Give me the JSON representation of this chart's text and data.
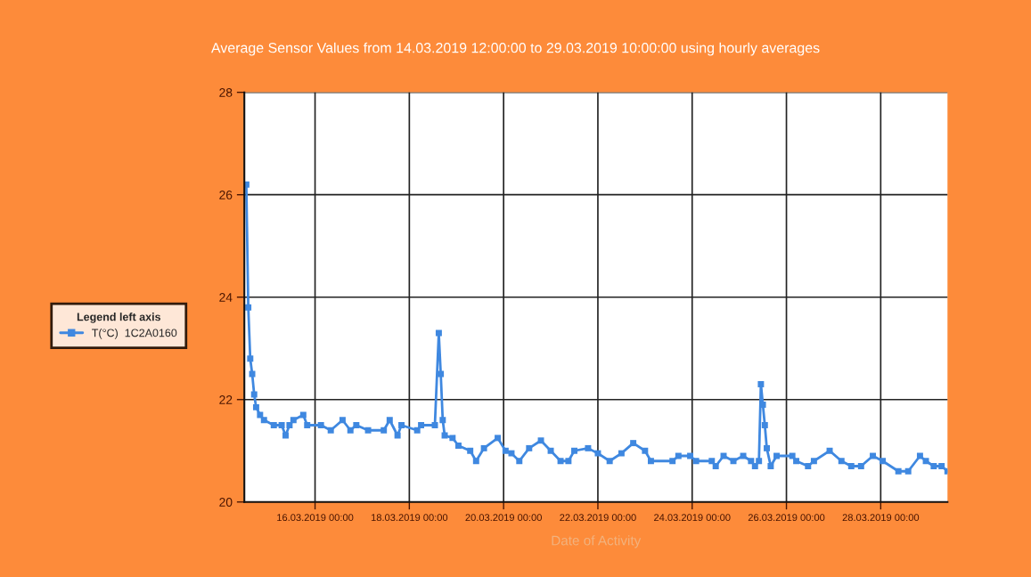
{
  "chart_data": {
    "type": "line",
    "title": "Average Sensor Values from 14.03.2019 12:00:00 to 29.03.2019 10:00:00 using hourly averages",
    "xlabel": "Date of Activity",
    "legend_title": "Legend left axis",
    "legend": "left",
    "grid": true,
    "marker": "square",
    "line_style": "solid",
    "xlim": [
      "2019-03-14T12:00",
      "2019-03-29T10:00"
    ],
    "xticks": [
      {
        "value": "2019-03-16T00:00",
        "label": "16.03.2019 00:00"
      },
      {
        "value": "2019-03-18T00:00",
        "label": "18.03.2019 00:00"
      },
      {
        "value": "2019-03-20T00:00",
        "label": "20.03.2019 00:00"
      },
      {
        "value": "2019-03-22T00:00",
        "label": "22.03.2019 00:00"
      },
      {
        "value": "2019-03-24T00:00",
        "label": "24.03.2019 00:00"
      },
      {
        "value": "2019-03-26T00:00",
        "label": "26.03.2019 00:00"
      },
      {
        "value": "2019-03-28T00:00",
        "label": "28.03.2019 00:00"
      }
    ],
    "ylim": [
      20,
      28
    ],
    "yticks": [
      20,
      22,
      24,
      26,
      28
    ],
    "series": [
      {
        "name": "T(°C)  1C2A0160",
        "color": "#3f88e0",
        "x": [
          "2019-03-14T13:00",
          "2019-03-14T14:00",
          "2019-03-14T15:00",
          "2019-03-14T16:00",
          "2019-03-14T17:00",
          "2019-03-14T18:00",
          "2019-03-14T20:00",
          "2019-03-14T22:00",
          "2019-03-15T03:00",
          "2019-03-15T07:00",
          "2019-03-15T09:00",
          "2019-03-15T11:00",
          "2019-03-15T13:00",
          "2019-03-15T18:00",
          "2019-03-15T20:00",
          "2019-03-16T03:00",
          "2019-03-16T08:00",
          "2019-03-16T14:00",
          "2019-03-16T18:00",
          "2019-03-16T21:00",
          "2019-03-17T03:00",
          "2019-03-17T11:00",
          "2019-03-17T14:00",
          "2019-03-17T18:00",
          "2019-03-17T20:00",
          "2019-03-18T04:00",
          "2019-03-18T06:00",
          "2019-03-18T13:00",
          "2019-03-18T15:00",
          "2019-03-18T16:00",
          "2019-03-18T17:00",
          "2019-03-18T18:00",
          "2019-03-18T22:00",
          "2019-03-19T01:00",
          "2019-03-19T07:00",
          "2019-03-19T10:00",
          "2019-03-19T14:00",
          "2019-03-19T21:00",
          "2019-03-20T01:00",
          "2019-03-20T04:00",
          "2019-03-20T08:00",
          "2019-03-20T13:00",
          "2019-03-20T19:00",
          "2019-03-21T00:00",
          "2019-03-21T05:00",
          "2019-03-21T09:00",
          "2019-03-21T12:00",
          "2019-03-21T19:00",
          "2019-03-22T00:00",
          "2019-03-22T06:00",
          "2019-03-22T12:00",
          "2019-03-22T18:00",
          "2019-03-23T00:00",
          "2019-03-23T03:00",
          "2019-03-23T14:00",
          "2019-03-23T17:00",
          "2019-03-23T23:00",
          "2019-03-24T02:00",
          "2019-03-24T10:00",
          "2019-03-24T12:00",
          "2019-03-24T16:00",
          "2019-03-24T21:00",
          "2019-03-25T02:00",
          "2019-03-25T06:00",
          "2019-03-25T08:00",
          "2019-03-25T10:00",
          "2019-03-25T11:00",
          "2019-03-25T12:00",
          "2019-03-25T13:00",
          "2019-03-25T14:00",
          "2019-03-25T16:00",
          "2019-03-25T19:00",
          "2019-03-26T03:00",
          "2019-03-26T05:00",
          "2019-03-26T11:00",
          "2019-03-26T14:00",
          "2019-03-26T22:00",
          "2019-03-27T04:00",
          "2019-03-27T09:00",
          "2019-03-27T14:00",
          "2019-03-27T20:00",
          "2019-03-28T01:00",
          "2019-03-28T09:00",
          "2019-03-28T14:00",
          "2019-03-28T20:00",
          "2019-03-28T23:00",
          "2019-03-29T03:00",
          "2019-03-29T07:00",
          "2019-03-29T10:00"
        ],
        "values": [
          26.2,
          23.8,
          22.8,
          22.5,
          22.1,
          21.85,
          21.7,
          21.6,
          21.5,
          21.5,
          21.3,
          21.5,
          21.6,
          21.7,
          21.5,
          21.5,
          21.4,
          21.6,
          21.4,
          21.5,
          21.4,
          21.4,
          21.6,
          21.3,
          21.5,
          21.4,
          21.5,
          21.5,
          23.3,
          22.5,
          21.6,
          21.3,
          21.25,
          21.1,
          21.0,
          20.8,
          21.05,
          21.25,
          21.0,
          20.95,
          20.8,
          21.05,
          21.2,
          21.0,
          20.8,
          20.8,
          21.0,
          21.05,
          20.95,
          20.8,
          20.95,
          21.15,
          21.0,
          20.8,
          20.8,
          20.9,
          20.9,
          20.8,
          20.8,
          20.7,
          20.9,
          20.8,
          20.9,
          20.8,
          20.7,
          20.8,
          22.3,
          21.9,
          21.5,
          21.05,
          20.7,
          20.9,
          20.9,
          20.8,
          20.7,
          20.8,
          21.0,
          20.8,
          20.7,
          20.7,
          20.9,
          20.8,
          20.6,
          20.6,
          20.9,
          20.8,
          20.7,
          20.7,
          20.6
        ]
      }
    ]
  }
}
